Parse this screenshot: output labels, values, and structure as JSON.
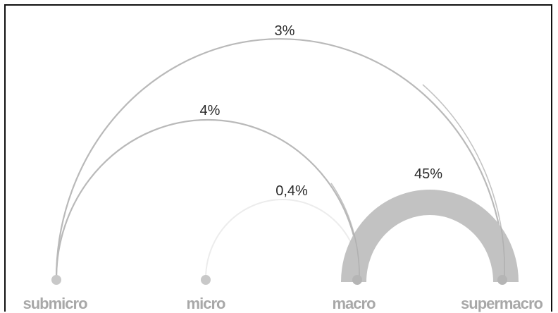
{
  "diagram": {
    "nodes": [
      {
        "id": "submicro",
        "label": "submicro"
      },
      {
        "id": "micro",
        "label": "micro"
      },
      {
        "id": "macro",
        "label": "macro"
      },
      {
        "id": "supermacro",
        "label": "supermacro"
      }
    ],
    "links": [
      {
        "from": "submicro",
        "to": "supermacro",
        "label": "3%",
        "value": 3
      },
      {
        "from": "submicro",
        "to": "macro",
        "label": "4%",
        "value": 4
      },
      {
        "from": "micro",
        "to": "macro",
        "label": "0,4%",
        "value": 0.4
      },
      {
        "from": "macro",
        "to": "supermacro",
        "label": "45%",
        "value": 45
      }
    ]
  },
  "colors": {
    "line": "#b9b9b9",
    "faint_line": "#e6e6e6",
    "thick_arc": "#c2c2c2",
    "node": "#c8c8c8",
    "node_label": "#a8a8a8",
    "text": "#2b2b2b"
  }
}
